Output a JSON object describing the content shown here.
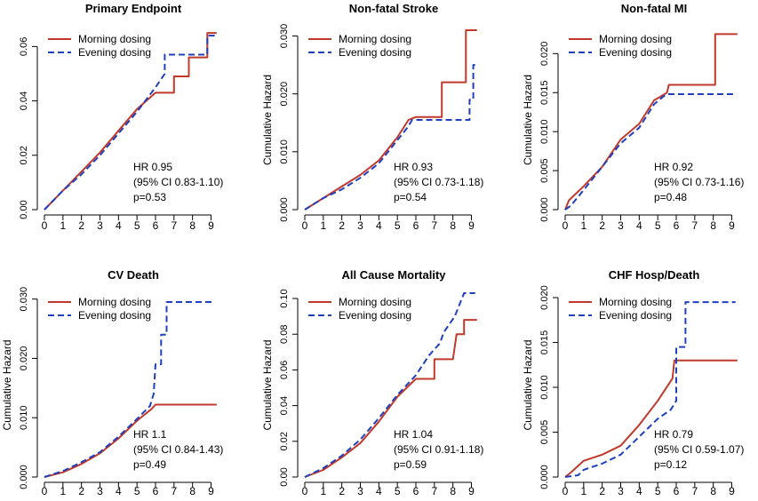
{
  "colors": {
    "morning": "#c0392b",
    "evening": "#1f3fbf",
    "axis": "#000000"
  },
  "chart_data": [
    {
      "type": "line",
      "title": "Primary Endpoint",
      "ylabel": "Cumulative Hazard",
      "ylabel_shown": false,
      "xlim": [
        0,
        9.6
      ],
      "ylim": [
        0,
        0.066
      ],
      "xticks": [
        0,
        1,
        2,
        3,
        4,
        5,
        6,
        7,
        8,
        9
      ],
      "yticks": [
        0,
        0.02,
        0.04,
        0.06
      ],
      "ytick_labels": [
        "0.00",
        "0.02",
        "0.04",
        "0.06"
      ],
      "legend": [
        "Morning dosing",
        "Evening dosing"
      ],
      "legend_position": "top-left",
      "annotation": [
        "HR 0.95",
        "(95% CI 0.83-1.10)",
        "p=0.53"
      ],
      "series": [
        {
          "name": "Morning dosing",
          "points": [
            [
              0,
              0
            ],
            [
              1,
              0.007
            ],
            [
              2,
              0.014
            ],
            [
              3,
              0.021
            ],
            [
              4,
              0.029
            ],
            [
              5,
              0.037
            ],
            [
              6,
              0.043
            ],
            [
              7,
              0.043
            ],
            [
              7,
              0.049
            ],
            [
              7.8,
              0.049
            ],
            [
              7.8,
              0.056
            ],
            [
              8.8,
              0.056
            ],
            [
              8.8,
              0.065
            ],
            [
              9.3,
              0.065
            ]
          ]
        },
        {
          "name": "Evening dosing",
          "points": [
            [
              0,
              0
            ],
            [
              1,
              0.007
            ],
            [
              2,
              0.013
            ],
            [
              3,
              0.02
            ],
            [
              4,
              0.028
            ],
            [
              5,
              0.036
            ],
            [
              6,
              0.045
            ],
            [
              6.3,
              0.048
            ],
            [
              6.5,
              0.05
            ],
            [
              6.5,
              0.057
            ],
            [
              8.8,
              0.057
            ],
            [
              8.8,
              0.064
            ],
            [
              9.2,
              0.064
            ]
          ]
        }
      ]
    },
    {
      "type": "line",
      "title": "Non-fatal Stroke",
      "ylabel": "Cumulative Hazard",
      "ylabel_shown": true,
      "xlim": [
        0,
        9.6
      ],
      "ylim": [
        0,
        0.031
      ],
      "xticks": [
        0,
        1,
        2,
        3,
        4,
        5,
        6,
        7,
        8,
        9
      ],
      "yticks": [
        0,
        0.01,
        0.02,
        0.03
      ],
      "ytick_labels": [
        "0.000",
        "0.010",
        "0.020",
        "0.030"
      ],
      "legend": [
        "Morning dosing",
        "Evening dosing"
      ],
      "legend_position": "top-left",
      "annotation": [
        "HR 0.93",
        "(95% CI 0.73-1.18)",
        "p=0.54"
      ],
      "series": [
        {
          "name": "Morning dosing",
          "points": [
            [
              0,
              0
            ],
            [
              1,
              0.002
            ],
            [
              2,
              0.004
            ],
            [
              3,
              0.006
            ],
            [
              4,
              0.0085
            ],
            [
              5,
              0.0125
            ],
            [
              5.6,
              0.0155
            ],
            [
              6,
              0.016
            ],
            [
              7.4,
              0.016
            ],
            [
              7.4,
              0.022
            ],
            [
              8.7,
              0.022
            ],
            [
              8.7,
              0.031
            ],
            [
              9.3,
              0.031
            ]
          ]
        },
        {
          "name": "Evening dosing",
          "points": [
            [
              0,
              0
            ],
            [
              1,
              0.002
            ],
            [
              2,
              0.0035
            ],
            [
              3,
              0.0055
            ],
            [
              4,
              0.008
            ],
            [
              5,
              0.012
            ],
            [
              5.5,
              0.014
            ],
            [
              5.8,
              0.0155
            ],
            [
              8.9,
              0.0155
            ],
            [
              8.9,
              0.019
            ],
            [
              9.1,
              0.019
            ],
            [
              9.1,
              0.025
            ],
            [
              9.2,
              0.025
            ]
          ]
        }
      ]
    },
    {
      "type": "line",
      "title": "Non-fatal MI",
      "ylabel": "Cumulative Hazard",
      "ylabel_shown": true,
      "xlim": [
        0,
        9.6
      ],
      "ylim": [
        0,
        0.023
      ],
      "xticks": [
        0,
        1,
        2,
        3,
        4,
        5,
        6,
        7,
        8,
        9
      ],
      "yticks": [
        0,
        0.005,
        0.01,
        0.015,
        0.02
      ],
      "ytick_labels": [
        "0.000",
        "0.005",
        "0.010",
        "0.015",
        "0.020"
      ],
      "legend": [
        "Morning dosing",
        "Evening dosing"
      ],
      "legend_position": "top-left",
      "annotation": [
        "HR 0.92",
        "(95% CI 0.73-1.16)",
        "p=0.48"
      ],
      "series": [
        {
          "name": "Morning dosing",
          "points": [
            [
              0,
              0
            ],
            [
              0.2,
              0.0012
            ],
            [
              1,
              0.003
            ],
            [
              2,
              0.0055
            ],
            [
              3,
              0.009
            ],
            [
              4,
              0.011
            ],
            [
              4.8,
              0.014
            ],
            [
              5.5,
              0.015
            ],
            [
              5.6,
              0.016
            ],
            [
              8.1,
              0.016
            ],
            [
              8.1,
              0.0225
            ],
            [
              9.3,
              0.0225
            ]
          ]
        },
        {
          "name": "Evening dosing",
          "points": [
            [
              0,
              0
            ],
            [
              0.3,
              0.0005
            ],
            [
              1,
              0.0025
            ],
            [
              2,
              0.0055
            ],
            [
              3,
              0.0085
            ],
            [
              4,
              0.0105
            ],
            [
              4.8,
              0.0135
            ],
            [
              5.3,
              0.0145
            ],
            [
              5.5,
              0.0148
            ],
            [
              9.2,
              0.0148
            ]
          ]
        }
      ]
    },
    {
      "type": "line",
      "title": "CV Death",
      "ylabel": "Cumulative Hazard",
      "ylabel_shown": true,
      "xlim": [
        0,
        9.6
      ],
      "ylim": [
        0,
        0.031
      ],
      "xticks": [
        0,
        1,
        2,
        3,
        4,
        5,
        6,
        7,
        8,
        9
      ],
      "yticks": [
        0,
        0.01,
        0.02,
        0.03
      ],
      "ytick_labels": [
        "0.000",
        "0.010",
        "0.020",
        "0.030"
      ],
      "legend": [
        "Morning dosing",
        "Evening dosing"
      ],
      "legend_position": "top-left",
      "annotation": [
        "HR 1.1",
        "(95% CI 0.84-1.43)",
        "p=0.49"
      ],
      "series": [
        {
          "name": "Morning dosing",
          "points": [
            [
              0,
              0
            ],
            [
              1,
              0.0008
            ],
            [
              2,
              0.0022
            ],
            [
              3,
              0.004
            ],
            [
              4,
              0.0065
            ],
            [
              5,
              0.0095
            ],
            [
              5.8,
              0.0115
            ],
            [
              6,
              0.0122
            ],
            [
              9.3,
              0.0122
            ]
          ]
        },
        {
          "name": "Evening dosing",
          "points": [
            [
              0,
              0
            ],
            [
              1,
              0.001
            ],
            [
              2,
              0.0025
            ],
            [
              3,
              0.0042
            ],
            [
              4,
              0.0068
            ],
            [
              5,
              0.0098
            ],
            [
              5.7,
              0.012
            ],
            [
              5.9,
              0.014
            ],
            [
              6.0,
              0.019
            ],
            [
              6.3,
              0.019
            ],
            [
              6.3,
              0.024
            ],
            [
              6.6,
              0.024
            ],
            [
              6.6,
              0.0295
            ],
            [
              9.2,
              0.0295
            ]
          ]
        }
      ]
    },
    {
      "type": "line",
      "title": "All Cause Mortality",
      "ylabel": "Cumulative Hazard",
      "ylabel_shown": true,
      "xlim": [
        0,
        9.6
      ],
      "ylim": [
        0,
        0.103
      ],
      "xticks": [
        0,
        1,
        2,
        3,
        4,
        5,
        6,
        7,
        8,
        9
      ],
      "yticks": [
        0,
        0.02,
        0.04,
        0.06,
        0.08,
        0.1
      ],
      "ytick_labels": [
        "0.00",
        "0.02",
        "0.04",
        "0.06",
        "0.08",
        "0.10"
      ],
      "legend": [
        "Morning dosing",
        "Evening dosing"
      ],
      "legend_position": "top-left",
      "annotation": [
        "HR 1.04",
        "(95% CI 0.91-1.18)",
        "p=0.59"
      ],
      "series": [
        {
          "name": "Morning dosing",
          "points": [
            [
              0,
              0
            ],
            [
              1,
              0.004
            ],
            [
              2,
              0.011
            ],
            [
              3,
              0.019
            ],
            [
              4,
              0.031
            ],
            [
              5,
              0.045
            ],
            [
              6,
              0.055
            ],
            [
              7,
              0.055
            ],
            [
              7,
              0.066
            ],
            [
              8,
              0.066
            ],
            [
              8.2,
              0.08
            ],
            [
              8.6,
              0.08
            ],
            [
              8.6,
              0.088
            ],
            [
              9.3,
              0.088
            ]
          ]
        },
        {
          "name": "Evening dosing",
          "points": [
            [
              0,
              0
            ],
            [
              1,
              0.005
            ],
            [
              2,
              0.012
            ],
            [
              3,
              0.021
            ],
            [
              4,
              0.033
            ],
            [
              5,
              0.046
            ],
            [
              6,
              0.057
            ],
            [
              6.7,
              0.068
            ],
            [
              7.3,
              0.075
            ],
            [
              7.5,
              0.081
            ],
            [
              8.1,
              0.09
            ],
            [
              8.6,
              0.103
            ],
            [
              9.2,
              0.103
            ]
          ]
        }
      ]
    },
    {
      "type": "line",
      "title": "CHF Hosp/Death",
      "ylabel": "Cumulative Hazard",
      "ylabel_shown": true,
      "xlim": [
        0,
        9.6
      ],
      "ylim": [
        0,
        0.0205
      ],
      "xticks": [
        0,
        1,
        2,
        3,
        4,
        5,
        6,
        7,
        8,
        9
      ],
      "yticks": [
        0,
        0.005,
        0.01,
        0.015,
        0.02
      ],
      "ytick_labels": [
        "0.000",
        "0.005",
        "0.010",
        "0.015",
        "0.020"
      ],
      "legend": [
        "Morning dosing",
        "Evening dosing"
      ],
      "legend_position": "top-left",
      "annotation": [
        "HR 0.79",
        "(95% CI 0.59-1.07)",
        "p=0.12"
      ],
      "series": [
        {
          "name": "Morning dosing",
          "points": [
            [
              0,
              0
            ],
            [
              0.3,
              0.0005
            ],
            [
              1,
              0.0018
            ],
            [
              2,
              0.0025
            ],
            [
              3,
              0.0035
            ],
            [
              4,
              0.0058
            ],
            [
              5,
              0.0085
            ],
            [
              5.8,
              0.011
            ],
            [
              5.9,
              0.013
            ],
            [
              9.3,
              0.013
            ]
          ]
        },
        {
          "name": "Evening dosing",
          "points": [
            [
              0,
              0
            ],
            [
              0.7,
              0.0002
            ],
            [
              1,
              0.0008
            ],
            [
              2,
              0.0015
            ],
            [
              3,
              0.0025
            ],
            [
              4,
              0.0045
            ],
            [
              5,
              0.0065
            ],
            [
              5.7,
              0.0075
            ],
            [
              6,
              0.0085
            ],
            [
              6,
              0.0145
            ],
            [
              6.5,
              0.0145
            ],
            [
              6.5,
              0.0195
            ],
            [
              9.2,
              0.0195
            ]
          ]
        }
      ]
    }
  ]
}
